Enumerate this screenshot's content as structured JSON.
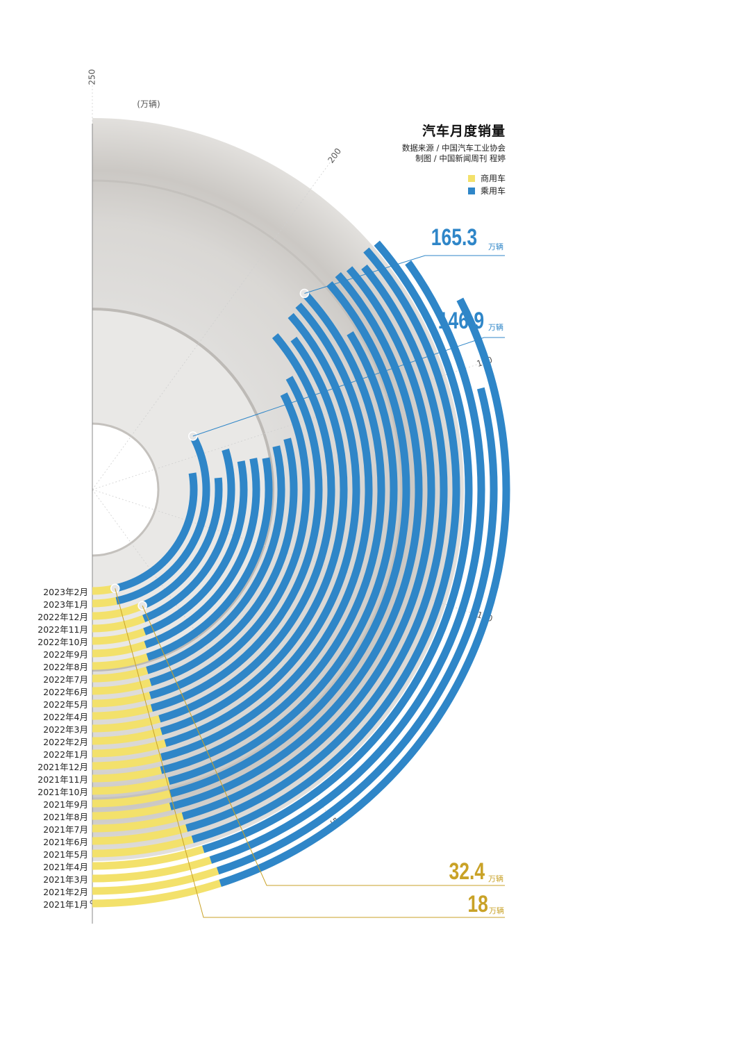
{
  "title": "汽车月度销量",
  "source_line": "数据来源 / 中国汽车工业协会",
  "credit_line": "制图 / 中国新闻周刊 程婷",
  "legend": [
    {
      "label": "商用车",
      "color": "#f3e16b"
    },
    {
      "label": "乘用车",
      "color": "#2f86c8"
    }
  ],
  "axis_unit": "(万辆)",
  "axis_ticks": [
    "0",
    "50",
    "100",
    "150",
    "200",
    "250"
  ],
  "callouts": {
    "peak_passenger": {
      "value": "165.3",
      "unit": "万辆"
    },
    "jan2023_passenger": {
      "value": "146.9",
      "unit": "万辆"
    },
    "peak_commercial": {
      "value": "32.4",
      "unit": "万辆"
    },
    "feb2023_commercial": {
      "value": "18",
      "unit": "万辆"
    }
  },
  "colors": {
    "commercial": "#f3e16b",
    "passenger": "#2f86c8",
    "callout_blue": "#2f86c8",
    "callout_gold": "#c9a227"
  },
  "chart_data": {
    "type": "bar",
    "layout": "radial stacked bars",
    "title": "汽车月度销量",
    "unit": "万辆",
    "axis_range": [
      0,
      250
    ],
    "categories": [
      "2021年1月",
      "2021年2月",
      "2021年3月",
      "2021年4月",
      "2021年5月",
      "2021年6月",
      "2021年7月",
      "2021年8月",
      "2021年9月",
      "2021年10月",
      "2021年11月",
      "2021年12月",
      "2022年1月",
      "2022年2月",
      "2022年3月",
      "2022年4月",
      "2022年5月",
      "2022年6月",
      "2022年7月",
      "2022年8月",
      "2022年9月",
      "2022年10月",
      "2022年11月",
      "2022年12月",
      "2023年1月",
      "2023年2月"
    ],
    "series": [
      {
        "name": "商用车",
        "values": [
          25.0,
          25.3,
          24.6,
          23.8,
          22.2,
          21.6,
          21.5,
          19.2,
          19.9,
          20.4,
          19.1,
          20.1,
          22.3,
          22.1,
          22.7,
          21.1,
          21.8,
          23.3,
          23.4,
          25.3,
          26.2,
          28.0,
          30.2,
          32.4,
          17.0,
          18.0
        ]
      },
      {
        "name": "乘用车",
        "values": [
          138.0,
          120.0,
          150.0,
          158.0,
          160.0,
          158.0,
          160.0,
          163.0,
          162.0,
          148.0,
          165.3,
          163.0,
          160.0,
          154.0,
          158.0,
          145.0,
          140.0,
          122.0,
          120.0,
          114.0,
          114.0,
          112.0,
          118.0,
          100.0,
          146.9,
          120.0
        ]
      }
    ]
  }
}
